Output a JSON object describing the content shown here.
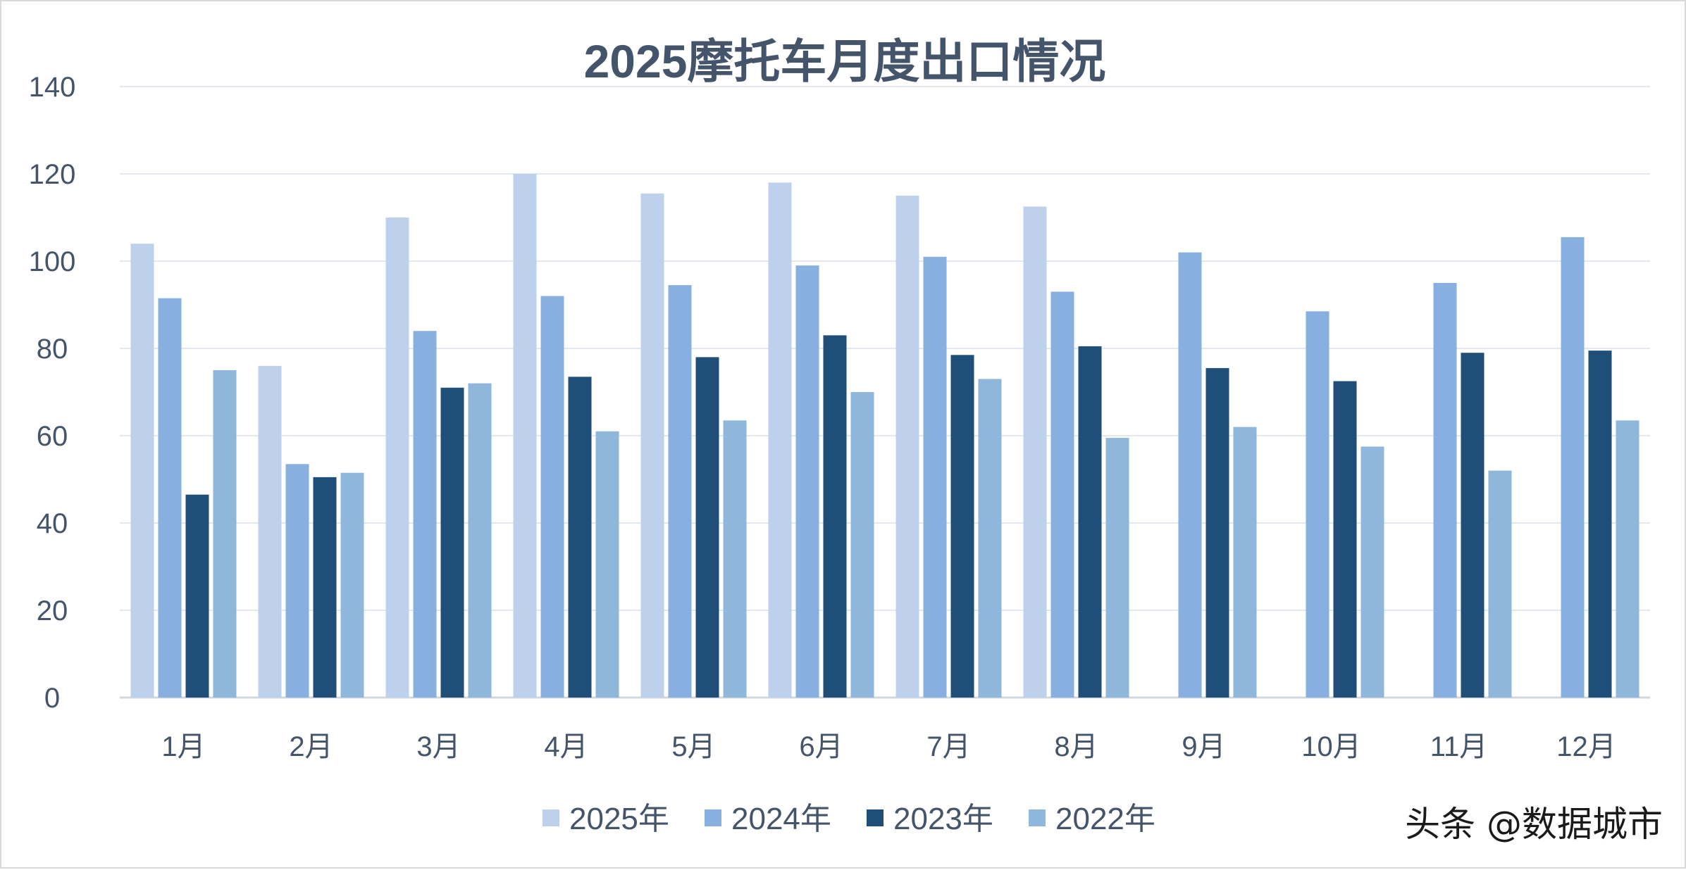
{
  "chart_data": {
    "type": "bar",
    "title": "2025摩托车月度出口情况",
    "xlabel": "",
    "ylabel": "",
    "ylim": [
      0,
      140
    ],
    "yticks": [
      0,
      20,
      40,
      60,
      80,
      100,
      120,
      140
    ],
    "grid": true,
    "legend_position": "bottom",
    "categories": [
      "1月",
      "2月",
      "3月",
      "4月",
      "5月",
      "6月",
      "7月",
      "8月",
      "9月",
      "10月",
      "11月",
      "12月"
    ],
    "series": [
      {
        "name": "2025年",
        "color": "#bdd1ec",
        "values": [
          104,
          76,
          110,
          120,
          115.5,
          118,
          115,
          112.5,
          null,
          null,
          null,
          null
        ]
      },
      {
        "name": "2024年",
        "color": "#87afe0",
        "values": [
          91.5,
          53.5,
          84,
          92,
          94.5,
          99,
          101,
          93,
          102,
          88.5,
          95,
          105.5
        ]
      },
      {
        "name": "2023年",
        "color": "#1f4e79",
        "values": [
          46.5,
          50.5,
          71,
          73.5,
          78,
          83,
          78.5,
          80.5,
          75.5,
          72.5,
          79,
          79.5
        ]
      },
      {
        "name": "2022年",
        "color": "#8fb7db",
        "values": [
          75,
          51.5,
          72,
          61,
          63.5,
          70,
          73,
          59.5,
          62,
          57.5,
          52,
          63.5
        ]
      }
    ]
  },
  "watermark": "头条 @数据城市"
}
